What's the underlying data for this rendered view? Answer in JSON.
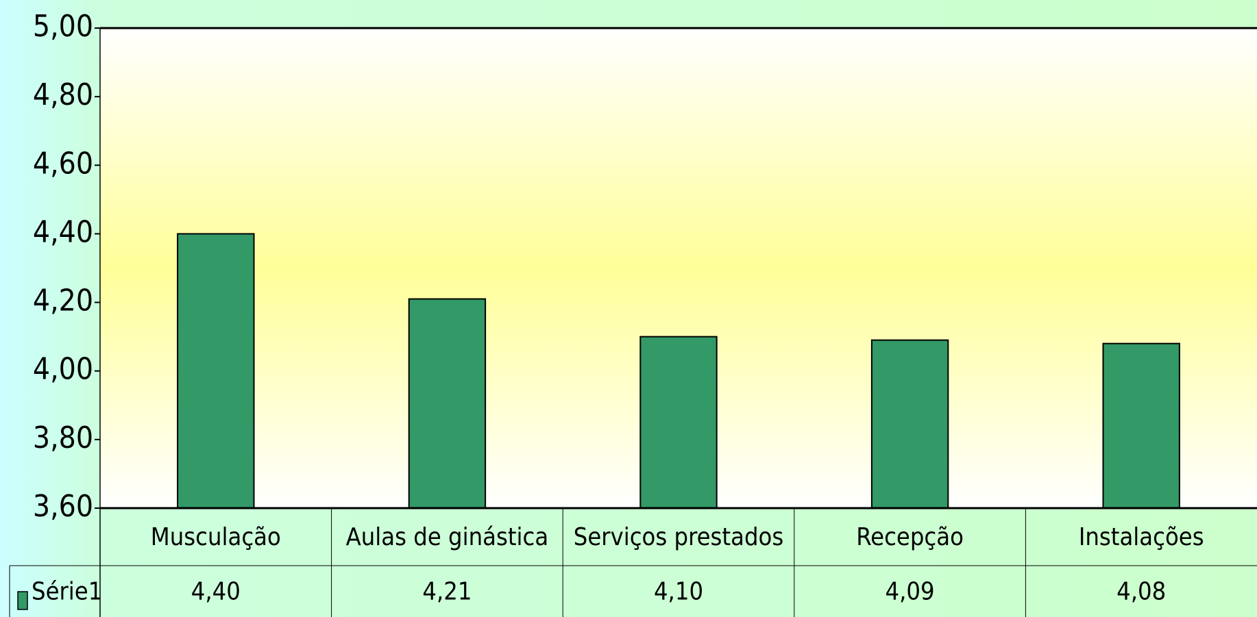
{
  "chart_data": {
    "type": "bar",
    "categories": [
      "Musculação",
      "Aulas de ginástica",
      "Serviços prestados",
      "Recepção",
      "Instalações"
    ],
    "series": [
      {
        "name": "Série1",
        "color": "#339966",
        "values": [
          4.4,
          4.21,
          4.1,
          4.09,
          4.08
        ],
        "value_labels": [
          "4,40",
          "4,21",
          "4,10",
          "4,09",
          "4,08"
        ]
      }
    ],
    "ylim": [
      3.6,
      5.0
    ],
    "yticks": [
      {
        "value": 3.6,
        "label": "3,60"
      },
      {
        "value": 3.8,
        "label": "3,80"
      },
      {
        "value": 4.0,
        "label": "4,00"
      },
      {
        "value": 4.2,
        "label": "4,20"
      },
      {
        "value": 4.4,
        "label": "4,40"
      },
      {
        "value": 4.6,
        "label": "4,60"
      },
      {
        "value": 4.8,
        "label": "4,80"
      },
      {
        "value": 5.0,
        "label": "5,00"
      }
    ],
    "grid": false
  }
}
